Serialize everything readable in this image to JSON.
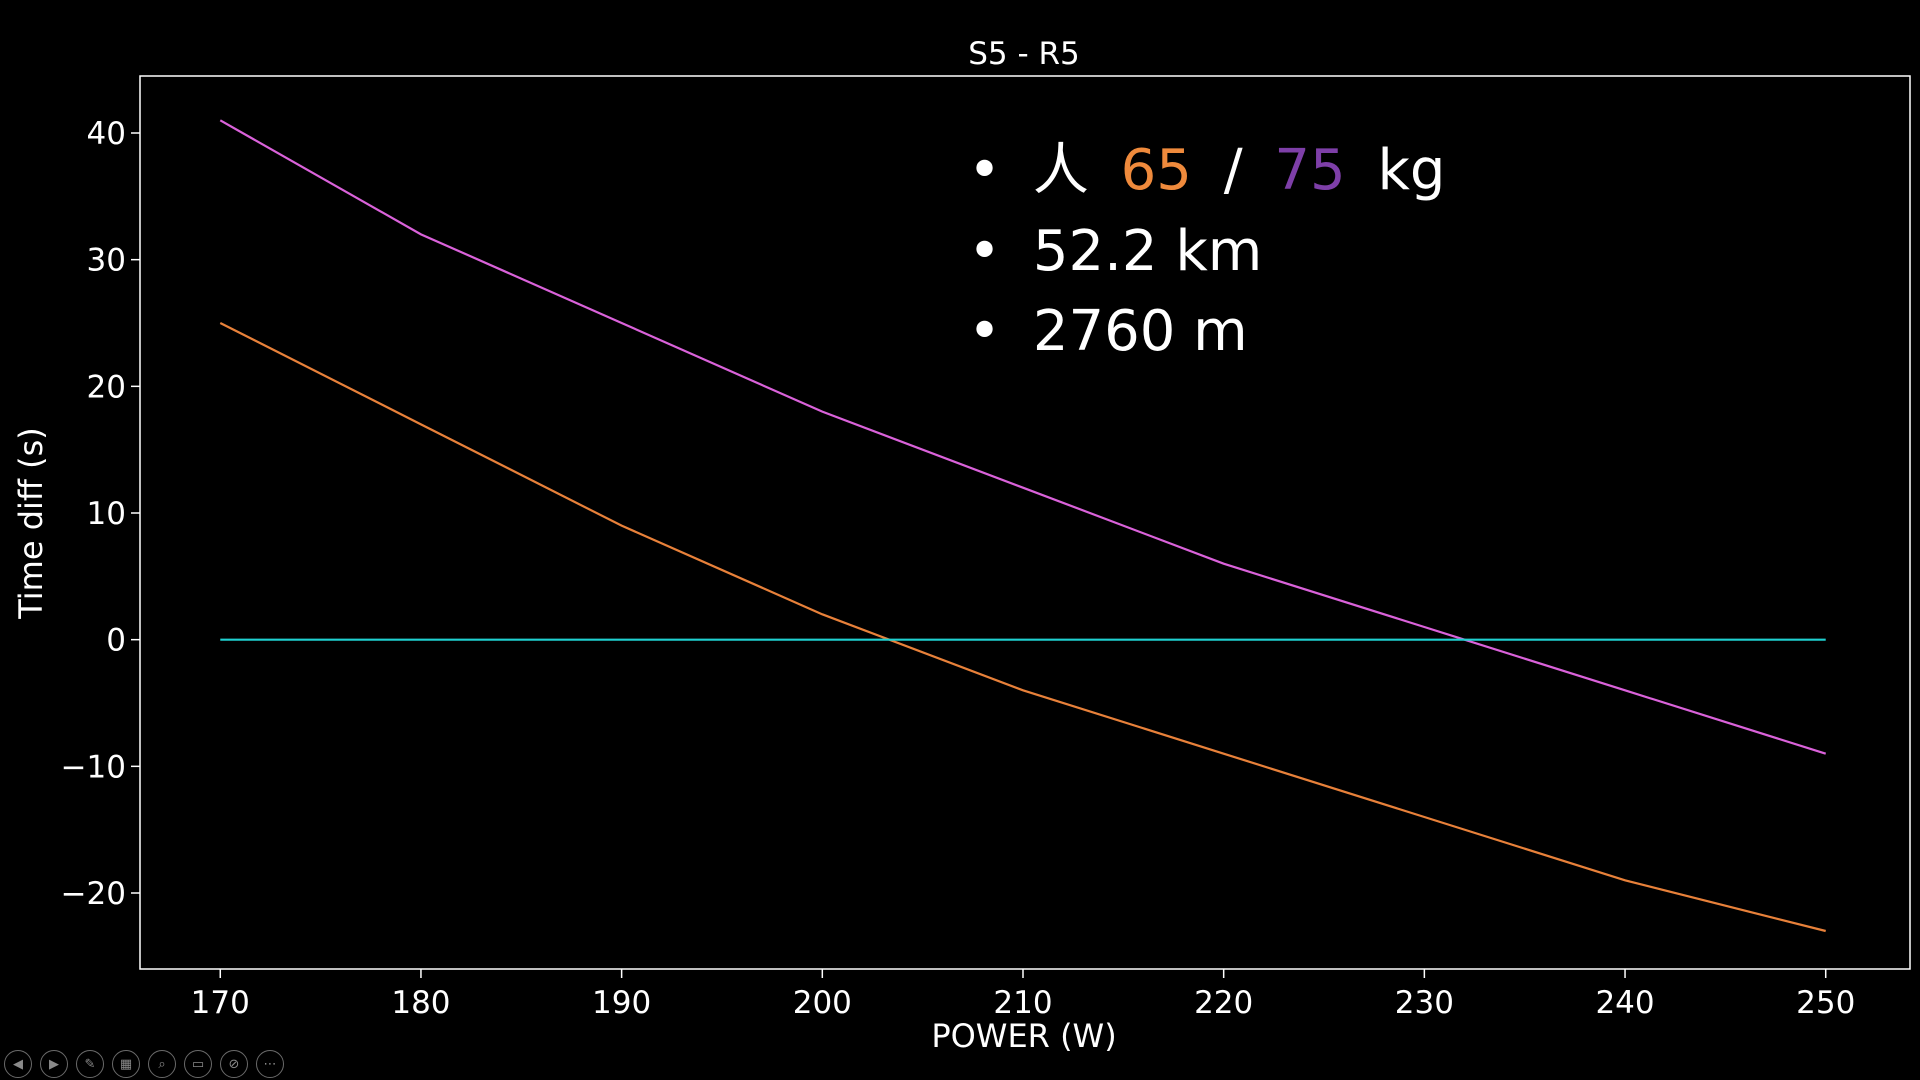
{
  "chart_data": {
    "type": "line",
    "title": "S5 - R5",
    "xlabel": "POWER (W)",
    "ylabel": "Time diff (s)",
    "xlim": [
      166,
      254.2
    ],
    "ylim": [
      -26,
      44.5
    ],
    "xticks": [
      170,
      180,
      190,
      200,
      210,
      220,
      230,
      240,
      250
    ],
    "yticks": [
      -20,
      -10,
      0,
      10,
      20,
      30,
      40
    ],
    "grid": false,
    "x": [
      170,
      180,
      190,
      200,
      210,
      220,
      230,
      240,
      250
    ],
    "series": [
      {
        "color": "#da62da",
        "values": [
          41,
          32,
          25,
          18,
          12,
          6,
          1,
          -4,
          -9
        ]
      },
      {
        "color": "#e8813a",
        "values": [
          25,
          17,
          9,
          2,
          -4,
          -9,
          -14,
          -19,
          -23
        ]
      },
      {
        "color": "#1fd0d0",
        "values": [
          0,
          0,
          0,
          0,
          0,
          0,
          0,
          0,
          0
        ]
      }
    ],
    "annotations": {
      "bullet": "•",
      "line1": {
        "prefix": "人",
        "val1": "65",
        "sep": "/",
        "val2": "75",
        "unit": "kg",
        "val1_color": "#ef8a3c",
        "val2_color": "#7e3fa8"
      },
      "line2": "52.2 km",
      "line3": "2760 m"
    }
  },
  "toolbar": {
    "icons": [
      "prev-icon",
      "next-icon",
      "pen-icon",
      "slides-icon",
      "zoom-icon",
      "subtitle-icon",
      "camera-off-icon",
      "more-icon"
    ],
    "glyphs": [
      "◀",
      "▶",
      "✎",
      "▦",
      "⌕",
      "▭",
      "⊘",
      "⋯"
    ]
  }
}
